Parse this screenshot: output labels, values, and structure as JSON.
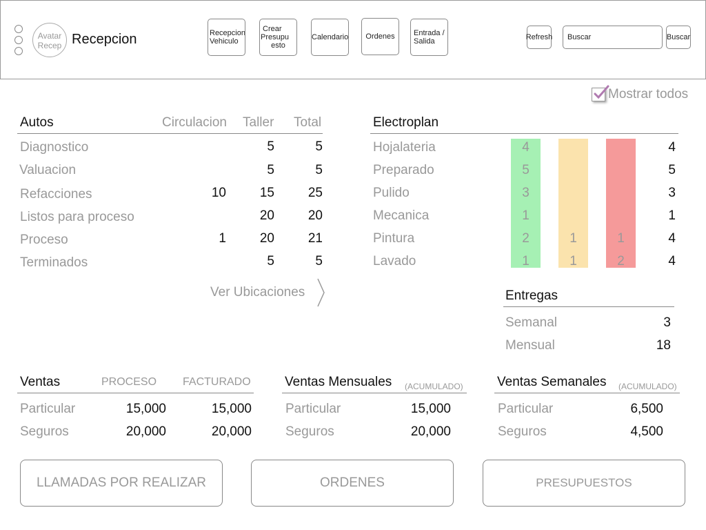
{
  "header": {
    "avatar_line1": "Avatar",
    "avatar_line2": "Recep",
    "title": "Recepcion",
    "nav": [
      {
        "line1": "Recepcion",
        "line2": "Vehiculo",
        "line3": ""
      },
      {
        "line1": "Crear",
        "line2": "Presupu",
        "line3": "esto"
      },
      {
        "line1": "Calendario",
        "line2": "",
        "line3": ""
      },
      {
        "line1": "Ordenes",
        "line2": "",
        "line3": ""
      },
      {
        "line1": "Entrada /",
        "line2": "Salida",
        "line3": ""
      }
    ],
    "refresh_label": "Refresh",
    "search_placeholder": "Buscar",
    "search_button": "Buscar"
  },
  "show_all": {
    "label": "Mostrar todos",
    "checked": true,
    "check_color": "#b07ab0"
  },
  "autos": {
    "title": "Autos",
    "columns": [
      "Circulacion",
      "Taller",
      "Total"
    ],
    "rows": [
      {
        "label": "Diagnostico",
        "circulacion": "",
        "taller": "5",
        "total": "5"
      },
      {
        "label": "Valuacion",
        "circulacion": "",
        "taller": "5",
        "total": "5"
      },
      {
        "label": "Refacciones",
        "circulacion": "10",
        "taller": "15",
        "total": "25"
      },
      {
        "label": "Listos para proceso",
        "circulacion": "",
        "taller": "20",
        "total": "20"
      },
      {
        "label": "Proceso",
        "circulacion": "1",
        "taller": "20",
        "total": "21"
      },
      {
        "label": "Terminados",
        "circulacion": "",
        "taller": "5",
        "total": "5"
      }
    ],
    "link": "Ver Ubicaciones"
  },
  "electroplan": {
    "title": "Electroplan",
    "colors": {
      "green": "#a6f0b4",
      "yellow": "#fbe3ad",
      "red": "#f59a9a"
    },
    "rows": [
      {
        "label": "Hojalateria",
        "green": "4",
        "yellow": "",
        "red": "",
        "total": "4"
      },
      {
        "label": "Preparado",
        "green": "5",
        "yellow": "",
        "red": "",
        "total": "5"
      },
      {
        "label": "Pulido",
        "green": "3",
        "yellow": "",
        "red": "",
        "total": "3"
      },
      {
        "label": "Mecanica",
        "green": "1",
        "yellow": "",
        "red": "",
        "total": "1"
      },
      {
        "label": "Pintura",
        "green": "2",
        "yellow": "1",
        "red": "1",
        "total": "4"
      },
      {
        "label": "Lavado",
        "green": "1",
        "yellow": "1",
        "red": "2",
        "total": "4"
      }
    ]
  },
  "entregas": {
    "title": "Entregas",
    "rows": [
      {
        "label": "Semanal",
        "value": "3"
      },
      {
        "label": "Mensual",
        "value": "18"
      }
    ]
  },
  "ventas": {
    "title": "Ventas",
    "col1": "PROCESO",
    "col2": "FACTURADO",
    "rows": [
      {
        "label": "Particular",
        "proceso": "15,000",
        "facturado": "15,000"
      },
      {
        "label": "Seguros",
        "proceso": "20,000",
        "facturado": "20,000"
      }
    ]
  },
  "ventas_mensuales": {
    "title": "Ventas Mensuales",
    "note": "(ACUMULADO)",
    "rows": [
      {
        "label": "Particular",
        "value": "15,000"
      },
      {
        "label": "Seguros",
        "value": "20,000"
      }
    ]
  },
  "ventas_semanales": {
    "title": "Ventas Semanales",
    "note": "(ACUMULADO)",
    "rows": [
      {
        "label": "Particular",
        "value": "6,500"
      },
      {
        "label": "Seguros",
        "value": "4,500"
      }
    ]
  },
  "bottom_buttons": {
    "llamadas": "LLAMADAS POR REALIZAR",
    "ordenes": "ORDENES",
    "presupuestos": "PRESUPUESTOS"
  }
}
